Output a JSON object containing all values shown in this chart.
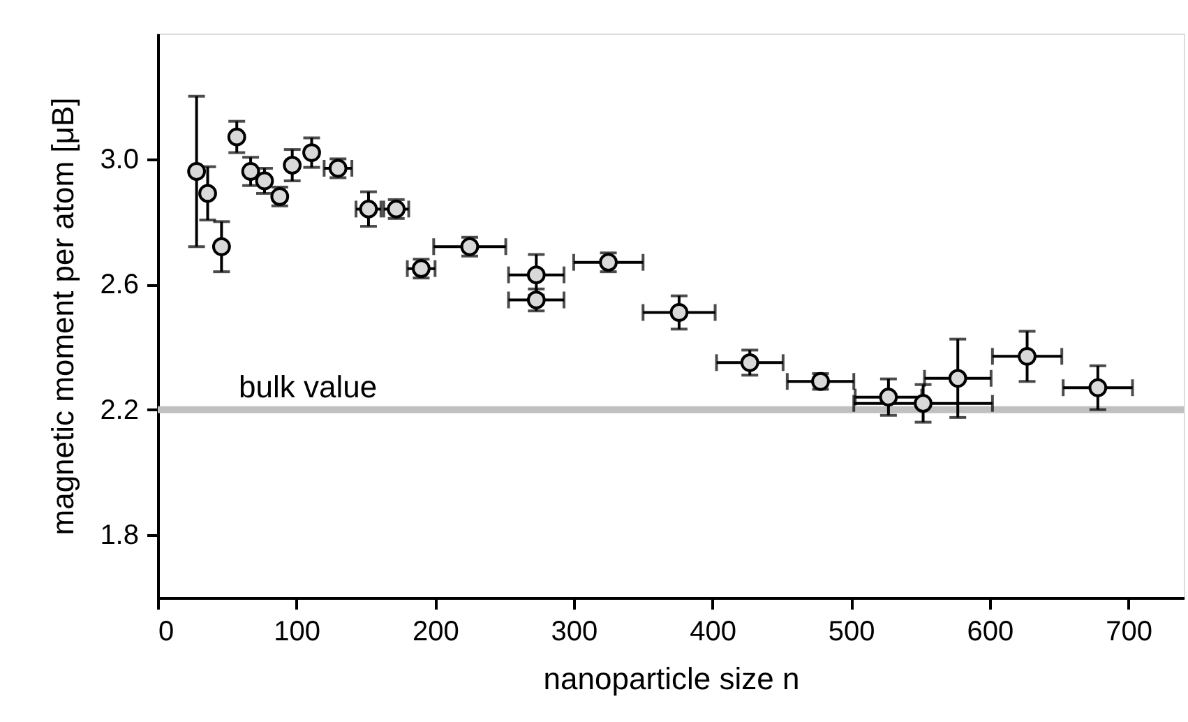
{
  "chart_data": {
    "type": "scatter",
    "xlabel": "nanoparticle size n",
    "ylabel": "magnetic moment per atom  [μB]",
    "x": [
      28,
      36,
      46,
      57,
      67,
      77,
      88,
      97,
      111,
      130,
      152,
      172,
      190,
      225,
      273,
      273,
      325,
      376,
      427,
      478,
      527,
      552,
      577,
      627,
      678
    ],
    "series": [
      {
        "color": "#d9d9d9",
        "values": [
          2.96,
          2.89,
          2.72,
          3.07,
          2.96,
          2.93,
          2.88,
          2.98,
          3.02,
          2.97,
          2.84,
          2.84,
          2.65,
          2.72,
          2.63,
          2.55,
          2.67,
          2.51,
          2.35,
          2.29,
          2.24,
          2.22,
          2.3,
          2.37,
          2.27
        ],
        "errors": [
          0.24,
          0.085,
          0.08,
          0.05,
          0.045,
          0.04,
          0.03,
          0.05,
          0.047,
          0.03,
          0.055,
          0.03,
          0.03,
          0.03,
          0.065,
          0.035,
          0.03,
          0.053,
          0.04,
          0.025,
          0.058,
          0.06,
          0.125,
          0.08,
          0.07
        ],
        "xerrors": [
          null,
          null,
          null,
          null,
          null,
          null,
          null,
          null,
          null,
          10,
          9,
          9,
          10,
          26,
          20,
          20,
          25,
          26,
          24,
          24,
          24,
          50,
          24,
          25,
          25
        ]
      }
    ],
    "marker": "circle",
    "xlim": [
      0,
      740
    ],
    "xticks": [
      0,
      100,
      200,
      300,
      400,
      500,
      600,
      700
    ],
    "ylim": [
      1.6,
      3.4
    ],
    "yticks": [
      {
        "value": 1.8,
        "label": "1.8"
      },
      {
        "value": 2.2,
        "label": "2.2"
      },
      {
        "value": 2.6,
        "label": "2.6"
      },
      {
        "value": 3.0,
        "label": "3.0"
      }
    ],
    "ref_lines": [
      {
        "axis": "y",
        "value": 2.2,
        "label": "bulk value",
        "color": "#c0c0c0"
      }
    ],
    "grid": false
  }
}
